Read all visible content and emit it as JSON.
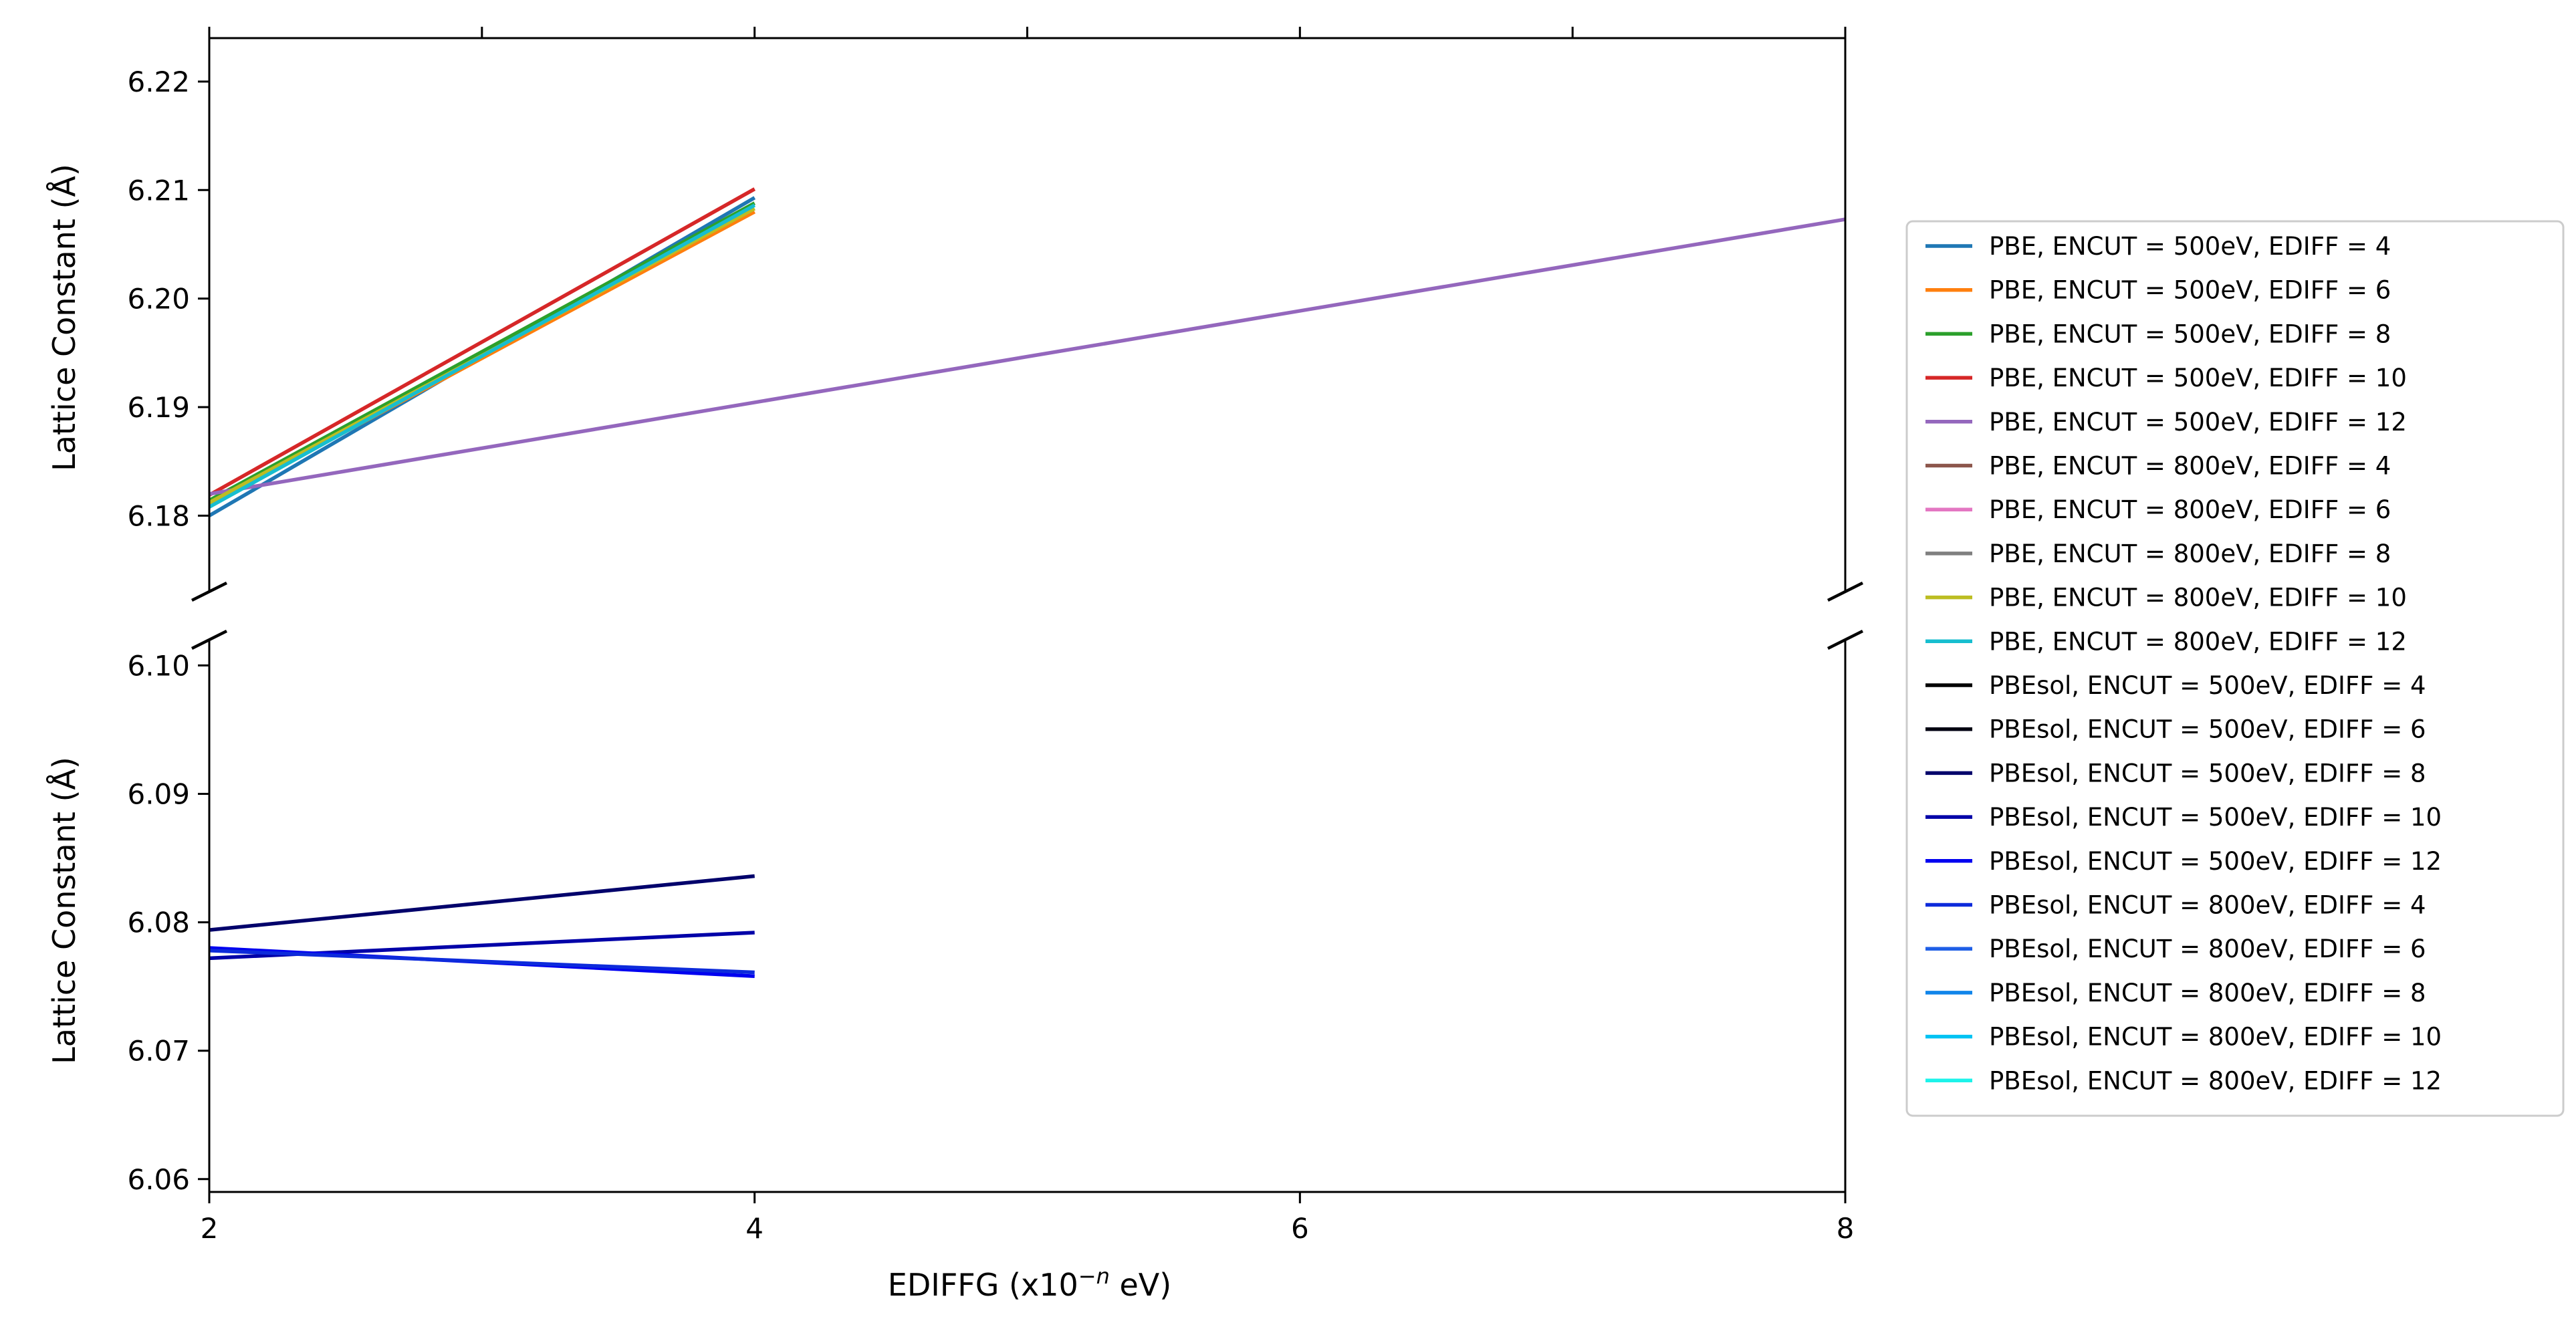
{
  "chart_data": {
    "type": "line",
    "broken_y_axis": true,
    "xlabel_prefix": "EDIFFG (x10",
    "xlabel_sup": "−n",
    "xlabel_suffix": " eV)",
    "ylabel": "Lattice Constant (Å)",
    "xlim": [
      2,
      8
    ],
    "xticks": [
      2,
      4,
      6,
      8
    ],
    "xtick_labels": [
      "2",
      "4",
      "6",
      "8"
    ],
    "top_axis_minor_ticks": [
      3,
      5,
      7
    ],
    "top_panel": {
      "ylim": [
        6.173,
        6.224
      ],
      "yticks": [
        6.18,
        6.19,
        6.2,
        6.21,
        6.22
      ],
      "ytick_labels": [
        "6.18",
        "6.19",
        "6.20",
        "6.21",
        "6.22"
      ]
    },
    "bottom_panel": {
      "ylim": [
        6.059,
        6.102
      ],
      "yticks": [
        6.06,
        6.07,
        6.08,
        6.09,
        6.1
      ],
      "ytick_labels": [
        "6.06",
        "6.07",
        "6.08",
        "6.09",
        "6.10"
      ]
    },
    "legend_position": "center-right-outside",
    "grid": false,
    "series": [
      {
        "name": "PBE, ENCUT = 500eV, EDIFF = 4",
        "color": "#1f77b4",
        "panel": "top",
        "x": [
          2,
          4
        ],
        "values": [
          6.18,
          6.2093
        ]
      },
      {
        "name": "PBE, ENCUT = 500eV, EDIFF = 6",
        "color": "#ff7f0e",
        "panel": "top",
        "x": [
          2,
          4
        ],
        "values": [
          6.181,
          6.208
        ]
      },
      {
        "name": "PBE, ENCUT = 500eV, EDIFF = 8",
        "color": "#2ca02c",
        "panel": "top",
        "x": [
          2,
          4
        ],
        "values": [
          6.1814,
          6.2088
        ]
      },
      {
        "name": "PBE, ENCUT = 500eV, EDIFF = 10",
        "color": "#d62728",
        "panel": "top",
        "x": [
          2,
          4
        ],
        "values": [
          6.1819,
          6.2101
        ]
      },
      {
        "name": "PBE, ENCUT = 500eV, EDIFF = 12",
        "color": "#9467bd",
        "panel": "top",
        "x": [
          2,
          8
        ],
        "values": [
          6.182,
          6.2073
        ]
      },
      {
        "name": "PBE, ENCUT = 800eV, EDIFF = 4",
        "color": "#8c564b",
        "panel": "top",
        "x": [],
        "values": []
      },
      {
        "name": "PBE, ENCUT = 800eV, EDIFF = 6",
        "color": "#e377c2",
        "panel": "top",
        "x": [],
        "values": []
      },
      {
        "name": "PBE, ENCUT = 800eV, EDIFF = 8",
        "color": "#7f7f7f",
        "panel": "top",
        "x": [],
        "values": []
      },
      {
        "name": "PBE, ENCUT = 800eV, EDIFF = 10",
        "color": "#bcbd22",
        "panel": "top",
        "x": [
          2,
          4
        ],
        "values": [
          6.1812,
          6.2083
        ]
      },
      {
        "name": "PBE, ENCUT = 800eV, EDIFF = 12",
        "color": "#17becf",
        "panel": "top",
        "x": [
          2,
          4
        ],
        "values": [
          6.1808,
          6.2086
        ]
      },
      {
        "name": "PBEsol, ENCUT = 500eV, EDIFF = 4",
        "color": "#000000",
        "panel": "bottom",
        "x": [],
        "values": []
      },
      {
        "name": "PBEsol, ENCUT = 500eV, EDIFF = 6",
        "color": "#000012",
        "panel": "bottom",
        "x": [],
        "values": []
      },
      {
        "name": "PBEsol, ENCUT = 500eV, EDIFF = 8",
        "color": "#00006b",
        "panel": "bottom",
        "x": [
          2,
          4
        ],
        "values": [
          6.0794,
          6.0836
        ]
      },
      {
        "name": "PBEsol, ENCUT = 500eV, EDIFF = 10",
        "color": "#0000a8",
        "panel": "bottom",
        "x": [
          2,
          4
        ],
        "values": [
          6.0772,
          6.0792
        ]
      },
      {
        "name": "PBEsol, ENCUT = 500eV, EDIFF = 12",
        "color": "#0000f0",
        "panel": "bottom",
        "x": [
          2,
          4
        ],
        "values": [
          6.078,
          6.0758
        ]
      },
      {
        "name": "PBEsol, ENCUT = 800eV, EDIFF = 4",
        "color": "#0d2bdb",
        "panel": "bottom",
        "x": [
          2,
          4
        ],
        "values": [
          6.0778,
          6.0761
        ]
      },
      {
        "name": "PBEsol, ENCUT = 800eV, EDIFF = 6",
        "color": "#1f5fe6",
        "panel": "bottom",
        "x": [],
        "values": []
      },
      {
        "name": "PBEsol, ENCUT = 800eV, EDIFF = 8",
        "color": "#1185ea",
        "panel": "bottom",
        "x": [],
        "values": []
      },
      {
        "name": "PBEsol, ENCUT = 800eV, EDIFF = 10",
        "color": "#00c3f3",
        "panel": "bottom",
        "x": [],
        "values": []
      },
      {
        "name": "PBEsol, ENCUT = 800eV, EDIFF = 12",
        "color": "#1df3ea",
        "panel": "bottom",
        "x": [],
        "values": []
      }
    ]
  }
}
